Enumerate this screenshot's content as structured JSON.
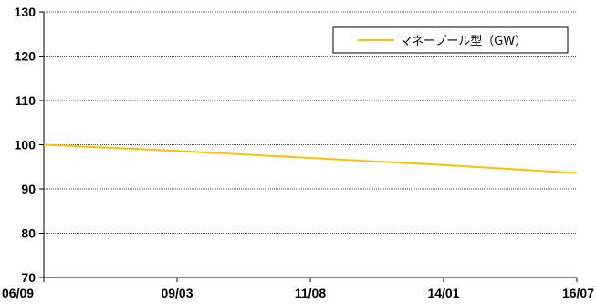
{
  "chart_data": {
    "type": "line",
    "title": "",
    "xlabel": "",
    "ylabel": "",
    "x_ticks": [
      "06/09",
      "09/03",
      "11/08",
      "14/01",
      "16/07"
    ],
    "ylim": [
      70,
      130
    ],
    "y_ticks": [
      70,
      80,
      90,
      100,
      110,
      120,
      130
    ],
    "grid": true,
    "legend_position": "top-right",
    "series": [
      {
        "name": "マネープール型（GW）",
        "color": "#FFC000",
        "x": [
          "06/09",
          "09/03",
          "11/08",
          "14/01",
          "16/07"
        ],
        "values": [
          100.0,
          98.6,
          97.0,
          95.4,
          93.6
        ]
      }
    ]
  }
}
